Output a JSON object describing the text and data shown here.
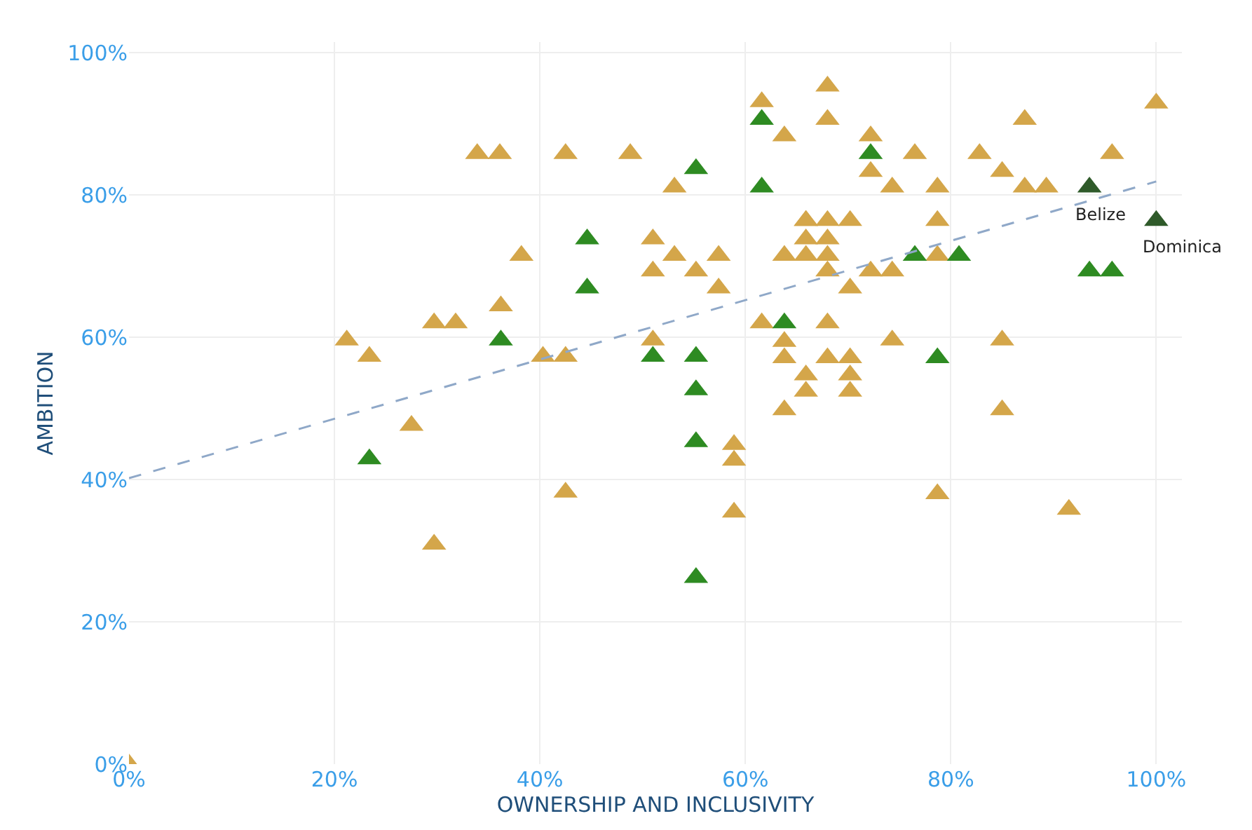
{
  "chart_data": {
    "type": "scatter",
    "xlabel": "OWNERSHIP AND INCLUSIVITY",
    "ylabel": "AMBITION",
    "marker": "triangle",
    "grid": true,
    "xlim": [
      0,
      102.5
    ],
    "ylim": [
      0,
      101.5
    ],
    "xticks": [
      {
        "value": 0,
        "label": "0%"
      },
      {
        "value": 20,
        "label": "20%"
      },
      {
        "value": 40,
        "label": "40%"
      },
      {
        "value": 60,
        "label": "60%"
      },
      {
        "value": 80,
        "label": "80%"
      },
      {
        "value": 100,
        "label": "100%"
      }
    ],
    "yticks": [
      {
        "value": 0,
        "label": "0%"
      },
      {
        "value": 20,
        "label": "20%"
      },
      {
        "value": 40,
        "label": "40%"
      },
      {
        "value": 60,
        "label": "60%"
      },
      {
        "value": 80,
        "label": "80%"
      },
      {
        "value": 100,
        "label": "100%"
      }
    ],
    "series": [
      {
        "color": "#d4a64a",
        "x": [
          0,
          21.2,
          23.4,
          27.5,
          29.7,
          29.7,
          31.8,
          33.9,
          36.1,
          36.2,
          38.2,
          40.3,
          42.5,
          42.5,
          42.5,
          48.8,
          51.0,
          51.0,
          51.0,
          53.1,
          53.1,
          55.2,
          57.4,
          57.4,
          58.9,
          58.9,
          58.9,
          61.6,
          61.6,
          63.8,
          63.8,
          63.8,
          63.8,
          63.8,
          65.9,
          65.9,
          65.9,
          65.9,
          65.9,
          65.9,
          68.0,
          68.0,
          68.0,
          68.0,
          68.0,
          68.0,
          68.0,
          68.0,
          70.2,
          70.2,
          70.2,
          70.2,
          70.2,
          72.2,
          72.2,
          72.2,
          74.3,
          74.3,
          74.3,
          76.5,
          78.7,
          78.7,
          78.7,
          78.7,
          82.8,
          85.0,
          85.0,
          85.0,
          87.2,
          87.2,
          89.3,
          91.5,
          95.7,
          100
        ],
        "values": [
          0,
          59.6,
          57.3,
          47.6,
          30.9,
          62.0,
          62.0,
          85.8,
          85.8,
          64.4,
          71.5,
          57.3,
          57.3,
          85.8,
          38.2,
          85.8,
          73.8,
          69.3,
          59.6,
          81.1,
          71.5,
          69.3,
          71.5,
          66.9,
          44.9,
          42.7,
          35.4,
          93.1,
          62.0,
          88.3,
          71.5,
          59.4,
          57.1,
          49.8,
          76.4,
          73.8,
          71.5,
          54.7,
          52.4,
          76.4,
          95.3,
          90.6,
          76.4,
          73.8,
          71.5,
          69.3,
          62.0,
          57.1,
          76.4,
          66.9,
          57.1,
          54.7,
          52.4,
          88.3,
          83.3,
          69.3,
          81.1,
          69.3,
          59.6,
          85.8,
          81.1,
          76.4,
          71.5,
          38.0,
          85.8,
          83.3,
          59.6,
          49.8,
          90.6,
          81.1,
          81.1,
          35.8,
          85.8,
          92.9
        ]
      },
      {
        "color": "#2e8b22",
        "x": [
          23.4,
          36.2,
          44.6,
          44.6,
          51.0,
          55.2,
          55.2,
          55.2,
          55.2,
          55.2,
          61.6,
          61.6,
          63.8,
          72.2,
          76.5,
          78.7,
          80.8,
          93.5,
          95.7
        ],
        "values": [
          42.9,
          59.6,
          73.8,
          66.9,
          57.3,
          83.7,
          57.3,
          52.6,
          45.3,
          26.2,
          90.6,
          81.1,
          62.0,
          85.8,
          71.5,
          57.1,
          71.5,
          69.3,
          69.3
        ]
      },
      {
        "color": "#2f5a2a",
        "x": [
          93.5,
          100
        ],
        "values": [
          81.1,
          76.4
        ]
      },
      {
        "type": "line",
        "color": "#8fa8c8",
        "line_style": "dashed",
        "marker": "none",
        "x": [
          0,
          100
        ],
        "values": [
          40.2,
          81.9
        ]
      }
    ],
    "annotations": [
      {
        "text": "Belize",
        "x": 93.5,
        "y": 81.1
      },
      {
        "text": "Dominica",
        "x": 100,
        "y": 76.4
      }
    ]
  }
}
